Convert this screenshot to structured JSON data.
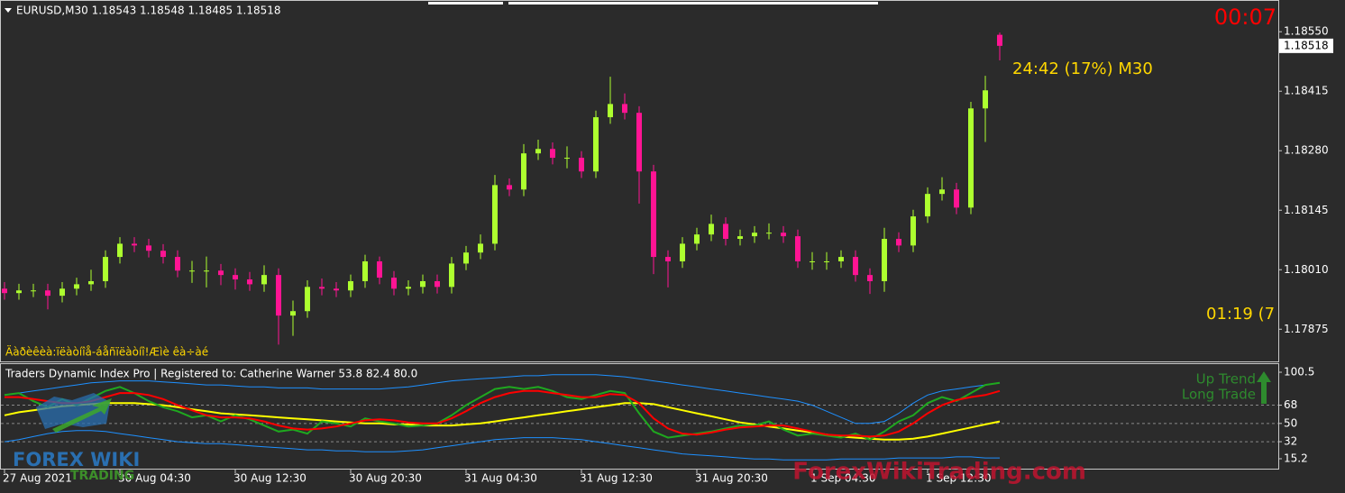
{
  "chart_data": [
    {
      "type": "candlestick",
      "title": "EURUSD,M30  1.18543 1.18548 1.18485 1.18518",
      "annotations": {
        "timer": "00:07",
        "bar_timer": "24:42 (17%) M30",
        "clipped_timer": "01:19 (7",
        "message": "Äàðèêèà:ïëàòíîå-áåñïëàòíî!Æìè êà÷àé"
      },
      "last_price": 1.18518,
      "up_color": "#adff2f",
      "down_color": "#ff1493",
      "categories": [
        "27 Aug 2021",
        null,
        null,
        null,
        null,
        null,
        null,
        null,
        "30 Aug 04:30",
        null,
        null,
        null,
        null,
        null,
        null,
        null,
        "30 Aug 12:30",
        null,
        null,
        null,
        null,
        null,
        null,
        null,
        "30 Aug 20:30",
        null,
        null,
        null,
        null,
        null,
        null,
        null,
        "31 Aug 04:30",
        null,
        null,
        null,
        null,
        null,
        null,
        null,
        "31 Aug 12:30",
        null,
        null,
        null,
        null,
        null,
        null,
        null,
        "31 Aug 20:30",
        null,
        null,
        null,
        null,
        null,
        null,
        null,
        "1 Sep 04:30",
        null,
        null,
        null,
        null,
        null,
        null,
        null,
        "1 Sep 12:30",
        null,
        null,
        null,
        null,
        null
      ],
      "open": [
        1.17967,
        1.17957,
        1.17963,
        1.17963,
        1.17951,
        1.17967,
        1.17977,
        1.17984,
        1.18039,
        1.18069,
        1.18065,
        1.18053,
        1.18039,
        1.18008,
        1.18008,
        1.18008,
        1.17998,
        1.17988,
        1.17977,
        1.17998,
        1.17906,
        1.17916,
        1.17971,
        1.17967,
        1.17963,
        1.17984,
        1.18029,
        1.17992,
        1.17967,
        1.17971,
        1.17984,
        1.17971,
        1.18024,
        1.18049,
        1.18069,
        1.18202,
        1.18192,
        1.18274,
        1.18284,
        1.18264,
        1.18264,
        1.18233,
        1.18356,
        1.18386,
        1.18366,
        1.18233,
        1.18039,
        1.18029,
        1.18069,
        1.1809,
        1.18114,
        1.1808,
        1.18086,
        1.18094,
        1.18094,
        1.18086,
        1.18029,
        1.18029,
        1.18029,
        1.18039,
        1.17998,
        1.17984,
        1.1808,
        1.18065,
        1.18131,
        1.18182,
        1.18192,
        1.18151,
        1.18376,
        1.18543
      ],
      "high": [
        1.17982,
        1.17978,
        1.17978,
        1.17978,
        1.17982,
        1.17992,
        1.1801,
        1.18054,
        1.18084,
        1.18084,
        1.1808,
        1.18068,
        1.18054,
        1.1803,
        1.1804,
        1.18023,
        1.18013,
        1.18005,
        1.1802,
        1.18013,
        1.1794,
        1.17986,
        1.1799,
        1.17982,
        1.17999,
        1.18044,
        1.1804,
        1.18007,
        1.17986,
        1.17999,
        1.17999,
        1.18039,
        1.18064,
        1.1809,
        1.18225,
        1.18217,
        1.18295,
        1.18305,
        1.18299,
        1.1829,
        1.18279,
        1.18371,
        1.18448,
        1.1841,
        1.18381,
        1.18248,
        1.18054,
        1.18084,
        1.18105,
        1.18135,
        1.18129,
        1.18101,
        1.18109,
        1.18115,
        1.18109,
        1.18101,
        1.1805,
        1.1805,
        1.18054,
        1.18054,
        1.18013,
        1.18105,
        1.18095,
        1.18146,
        1.18197,
        1.1822,
        1.18207,
        1.18391,
        1.1845,
        1.18548
      ],
      "low": [
        1.17942,
        1.17942,
        1.17948,
        1.1792,
        1.17936,
        1.17952,
        1.17962,
        1.17969,
        1.18024,
        1.1805,
        1.18038,
        1.18024,
        1.17993,
        1.1798,
        1.1797,
        1.17975,
        1.17965,
        1.17962,
        1.1796,
        1.1784,
        1.1786,
        1.17901,
        1.17952,
        1.17948,
        1.17948,
        1.17969,
        1.17977,
        1.17952,
        1.17952,
        1.17956,
        1.17956,
        1.17956,
        1.18009,
        1.18034,
        1.18054,
        1.18177,
        1.18177,
        1.18259,
        1.18249,
        1.1824,
        1.18218,
        1.18218,
        1.18341,
        1.18351,
        1.1816,
        1.18,
        1.1797,
        1.18014,
        1.18054,
        1.18075,
        1.18065,
        1.18065,
        1.18071,
        1.18079,
        1.18071,
        1.18014,
        1.1801,
        1.1801,
        1.18014,
        1.17983,
        1.17955,
        1.1796,
        1.1805,
        1.1805,
        1.18116,
        1.18167,
        1.18136,
        1.18136,
        1.183,
        1.18485
      ],
      "close": [
        1.17957,
        1.17963,
        1.17963,
        1.17951,
        1.17967,
        1.17977,
        1.17984,
        1.18039,
        1.18069,
        1.18065,
        1.18053,
        1.18039,
        1.18008,
        1.18008,
        1.18008,
        1.17998,
        1.17988,
        1.17977,
        1.17998,
        1.17906,
        1.17916,
        1.17971,
        1.17967,
        1.17963,
        1.17984,
        1.18029,
        1.17992,
        1.17967,
        1.17971,
        1.17984,
        1.17971,
        1.18024,
        1.18049,
        1.18069,
        1.18202,
        1.18192,
        1.18274,
        1.18284,
        1.18264,
        1.18264,
        1.18233,
        1.18356,
        1.18386,
        1.18366,
        1.18233,
        1.18039,
        1.18029,
        1.18069,
        1.1809,
        1.18114,
        1.1808,
        1.18086,
        1.18094,
        1.18094,
        1.18086,
        1.18029,
        1.18029,
        1.18029,
        1.18039,
        1.17998,
        1.17984,
        1.1808,
        1.18065,
        1.18131,
        1.18182,
        1.18192,
        1.18151,
        1.18376,
        1.18417,
        1.18518
      ],
      "ylim": [
        1.17804,
        1.18622
      ],
      "yticks": [
        {
          "value": 1.1855,
          "label": "1.18550"
        },
        1.18415,
        {
          "value": 1.1828,
          "label": "1.18280"
        },
        1.18145,
        {
          "value": 1.1801,
          "label": "1.18010"
        },
        1.17875
      ]
    },
    {
      "type": "line",
      "title": "Traders Dynamic Index Pro | Registered to: Catherine Warner 53.8 82.4 80.0",
      "annotations": {
        "trend": "Up Trend",
        "trade": "Long Trade"
      },
      "ylim": [
        5.4,
        107.6
      ],
      "yticks": [
        100.5,
        68,
        50,
        32,
        15.2
      ],
      "levels": [
        68,
        50,
        32
      ],
      "series": [
        {
          "color": "#1e90ff",
          "values": [
            78,
            80,
            82,
            84,
            86,
            88,
            90,
            91,
            92,
            92,
            92,
            91,
            90,
            89,
            88,
            88,
            87,
            86,
            86,
            85,
            85,
            85,
            84,
            84,
            84,
            84,
            84,
            85,
            86,
            88,
            90,
            92,
            93,
            94,
            95,
            96,
            97,
            97,
            98,
            98,
            98,
            98,
            97,
            96,
            94,
            92,
            90,
            88,
            86,
            84,
            82,
            80,
            78,
            76,
            74,
            72,
            68,
            62,
            56,
            50,
            50,
            52,
            60,
            70,
            78,
            82,
            84,
            86,
            88,
            90
          ]
        },
        {
          "color": "#1e90ff",
          "values": [
            32,
            34,
            37,
            40,
            42,
            43,
            43,
            42,
            40,
            38,
            36,
            34,
            32,
            31,
            30,
            30,
            29,
            28,
            27,
            26,
            25,
            24,
            24,
            23,
            23,
            22,
            22,
            22,
            23,
            24,
            26,
            28,
            30,
            32,
            34,
            35,
            36,
            36,
            36,
            35,
            34,
            32,
            30,
            28,
            26,
            24,
            22,
            20,
            19,
            18,
            17,
            16,
            15,
            15,
            14,
            14,
            14,
            14,
            15,
            15,
            15,
            15,
            16,
            16,
            16,
            16,
            17,
            17,
            16,
            16
          ]
        },
        {
          "color": "#ffff00",
          "values": [
            58,
            61,
            63,
            65,
            67,
            68,
            69,
            70,
            70,
            70,
            69,
            68,
            66,
            64,
            62,
            60,
            59,
            58,
            57,
            56,
            55,
            54,
            53,
            52,
            51,
            50,
            50,
            49,
            49,
            48,
            48,
            48,
            49,
            50,
            52,
            54,
            56,
            58,
            60,
            62,
            64,
            66,
            68,
            70,
            70,
            69,
            66,
            63,
            60,
            57,
            54,
            51,
            49,
            47,
            45,
            43,
            41,
            39,
            37,
            36,
            35,
            34,
            34,
            35,
            37,
            40,
            43,
            46,
            49,
            52
          ]
        },
        {
          "color": "#1fa81f",
          "values": [
            78,
            80,
            72,
            66,
            74,
            68,
            75,
            82,
            86,
            80,
            72,
            66,
            62,
            56,
            58,
            52,
            58,
            54,
            48,
            42,
            44,
            40,
            52,
            50,
            47,
            55,
            52,
            50,
            47,
            48,
            50,
            58,
            68,
            76,
            84,
            86,
            84,
            86,
            82,
            76,
            74,
            78,
            82,
            80,
            60,
            42,
            36,
            38,
            40,
            42,
            45,
            48,
            48,
            52,
            44,
            38,
            40,
            38,
            36,
            40,
            34,
            42,
            52,
            58,
            70,
            76,
            72,
            80,
            88,
            90
          ]
        },
        {
          "color": "#ff0000",
          "values": [
            76,
            76,
            74,
            72,
            70,
            70,
            72,
            76,
            80,
            80,
            78,
            74,
            68,
            63,
            58,
            56,
            56,
            55,
            52,
            48,
            45,
            44,
            45,
            47,
            50,
            53,
            54,
            53,
            51,
            50,
            50,
            55,
            62,
            70,
            76,
            80,
            82,
            82,
            80,
            78,
            76,
            76,
            79,
            78,
            70,
            55,
            45,
            40,
            39,
            41,
            44,
            46,
            47,
            48,
            48,
            45,
            42,
            39,
            38,
            38,
            37,
            38,
            42,
            50,
            60,
            68,
            73,
            76,
            78,
            82
          ]
        }
      ]
    }
  ],
  "overlay": {
    "watermark": "ForexWikiTrading.com",
    "logo_top": "FOREX WIKI",
    "logo_bottom": "TRADING"
  }
}
